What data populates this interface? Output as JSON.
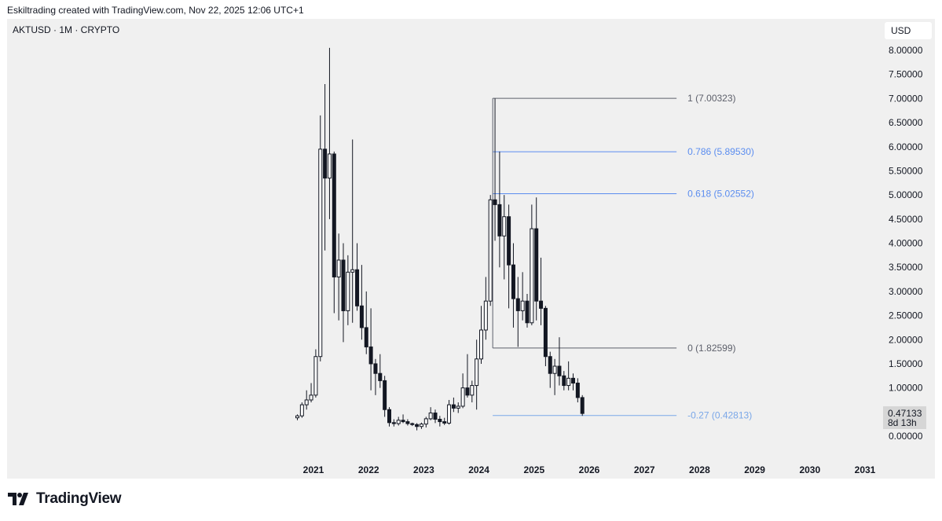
{
  "header": {
    "attribution": "Eskiltrading created with TradingView.com, Nov 22, 2025 12:06 UTC+1"
  },
  "symbol_label": "AKTUSD · 1M · CRYPTO",
  "currency_button": "USD",
  "price_badge": {
    "price": "0.47133",
    "countdown": "8d 13h"
  },
  "footer": {
    "brand": "TradingView"
  },
  "colors": {
    "background": "#f0f0f0",
    "candle": "#131722",
    "fib_dark": "#5d606b",
    "fib_blue": "#5b8def",
    "fib_light_blue": "#7aa7e8"
  },
  "chart_data": {
    "type": "candlestick",
    "symbol": "AKTUSD",
    "interval": "1M",
    "exchange": "CRYPTO",
    "y_axis": {
      "ticks": [
        "8.00000",
        "7.50000",
        "7.00000",
        "6.50000",
        "6.00000",
        "5.50000",
        "5.00000",
        "4.50000",
        "4.00000",
        "3.50000",
        "3.00000",
        "2.50000",
        "2.00000",
        "1.50000",
        "1.00000",
        "0.50000",
        "0.00000"
      ],
      "range": [
        0,
        8
      ]
    },
    "x_axis": {
      "ticks": [
        "2021",
        "2022",
        "2023",
        "2024",
        "2025",
        "2026",
        "2027",
        "2028",
        "2029",
        "2030",
        "2031"
      ]
    },
    "fib_levels": [
      {
        "ratio": "1",
        "label": "1 (7.00323)",
        "value": 7.00323,
        "color": "dark"
      },
      {
        "ratio": "0.786",
        "label": "0.786 (5.89530)",
        "value": 5.8953,
        "color": "blue"
      },
      {
        "ratio": "0.618",
        "label": "0.618 (5.02552)",
        "value": 5.02552,
        "color": "blue"
      },
      {
        "ratio": "0",
        "label": "0 (1.82599)",
        "value": 1.82599,
        "color": "dark"
      },
      {
        "ratio": "-0.27",
        "label": "-0.27 (0.42813)",
        "value": 0.42813,
        "color": "light_blue"
      }
    ],
    "fib_start_date": "2024-04",
    "fib_end_date": "2027-08",
    "candles": [
      {
        "d": "2020-09",
        "o": 0.38,
        "h": 0.45,
        "l": 0.33,
        "c": 0.42
      },
      {
        "d": "2020-10",
        "o": 0.42,
        "h": 0.7,
        "l": 0.38,
        "c": 0.65
      },
      {
        "d": "2020-11",
        "o": 0.65,
        "h": 0.95,
        "l": 0.55,
        "c": 0.75
      },
      {
        "d": "2020-12",
        "o": 0.75,
        "h": 1.1,
        "l": 0.7,
        "c": 0.85
      },
      {
        "d": "2021-01",
        "o": 0.85,
        "h": 1.8,
        "l": 0.8,
        "c": 1.65
      },
      {
        "d": "2021-02",
        "o": 1.65,
        "h": 6.65,
        "l": 1.55,
        "c": 5.95
      },
      {
        "d": "2021-03",
        "o": 5.95,
        "h": 7.3,
        "l": 3.85,
        "c": 5.35
      },
      {
        "d": "2021-04",
        "o": 5.35,
        "h": 8.05,
        "l": 4.5,
        "c": 5.85
      },
      {
        "d": "2021-05",
        "o": 5.85,
        "h": 5.9,
        "l": 2.55,
        "c": 3.3
      },
      {
        "d": "2021-06",
        "o": 3.3,
        "h": 4.2,
        "l": 2.4,
        "c": 3.65
      },
      {
        "d": "2021-07",
        "o": 3.65,
        "h": 4.0,
        "l": 1.95,
        "c": 2.6
      },
      {
        "d": "2021-08",
        "o": 2.6,
        "h": 3.75,
        "l": 2.3,
        "c": 3.4
      },
      {
        "d": "2021-09",
        "o": 3.4,
        "h": 6.15,
        "l": 2.35,
        "c": 3.45
      },
      {
        "d": "2021-10",
        "o": 3.45,
        "h": 4.0,
        "l": 2.6,
        "c": 2.7
      },
      {
        "d": "2021-11",
        "o": 2.7,
        "h": 3.55,
        "l": 2.0,
        "c": 2.25
      },
      {
        "d": "2021-12",
        "o": 2.25,
        "h": 3.0,
        "l": 1.7,
        "c": 1.85
      },
      {
        "d": "2022-01",
        "o": 1.85,
        "h": 2.65,
        "l": 0.95,
        "c": 1.5
      },
      {
        "d": "2022-02",
        "o": 1.5,
        "h": 1.6,
        "l": 0.85,
        "c": 1.3
      },
      {
        "d": "2022-03",
        "o": 1.3,
        "h": 1.7,
        "l": 1.0,
        "c": 1.15
      },
      {
        "d": "2022-04",
        "o": 1.15,
        "h": 1.25,
        "l": 0.4,
        "c": 0.55
      },
      {
        "d": "2022-05",
        "o": 0.55,
        "h": 0.6,
        "l": 0.2,
        "c": 0.28
      },
      {
        "d": "2022-06",
        "o": 0.28,
        "h": 0.35,
        "l": 0.2,
        "c": 0.26
      },
      {
        "d": "2022-07",
        "o": 0.26,
        "h": 0.4,
        "l": 0.22,
        "c": 0.33
      },
      {
        "d": "2022-08",
        "o": 0.33,
        "h": 0.45,
        "l": 0.27,
        "c": 0.3
      },
      {
        "d": "2022-09",
        "o": 0.3,
        "h": 0.35,
        "l": 0.22,
        "c": 0.26
      },
      {
        "d": "2022-10",
        "o": 0.26,
        "h": 0.28,
        "l": 0.21,
        "c": 0.24
      },
      {
        "d": "2022-11",
        "o": 0.24,
        "h": 0.27,
        "l": 0.12,
        "c": 0.2
      },
      {
        "d": "2022-12",
        "o": 0.2,
        "h": 0.28,
        "l": 0.15,
        "c": 0.25
      },
      {
        "d": "2023-01",
        "o": 0.25,
        "h": 0.4,
        "l": 0.18,
        "c": 0.36
      },
      {
        "d": "2023-02",
        "o": 0.36,
        "h": 0.6,
        "l": 0.33,
        "c": 0.48
      },
      {
        "d": "2023-03",
        "o": 0.48,
        "h": 0.55,
        "l": 0.27,
        "c": 0.35
      },
      {
        "d": "2023-04",
        "o": 0.35,
        "h": 0.42,
        "l": 0.2,
        "c": 0.3
      },
      {
        "d": "2023-05",
        "o": 0.3,
        "h": 0.38,
        "l": 0.23,
        "c": 0.27
      },
      {
        "d": "2023-06",
        "o": 0.27,
        "h": 0.75,
        "l": 0.24,
        "c": 0.65
      },
      {
        "d": "2023-07",
        "o": 0.65,
        "h": 0.8,
        "l": 0.5,
        "c": 0.58
      },
      {
        "d": "2023-08",
        "o": 0.58,
        "h": 0.7,
        "l": 0.48,
        "c": 0.62
      },
      {
        "d": "2023-09",
        "o": 0.62,
        "h": 1.3,
        "l": 0.58,
        "c": 1.0
      },
      {
        "d": "2023-10",
        "o": 1.0,
        "h": 1.7,
        "l": 0.8,
        "c": 0.85
      },
      {
        "d": "2023-11",
        "o": 0.85,
        "h": 1.15,
        "l": 0.7,
        "c": 1.05
      },
      {
        "d": "2023-12",
        "o": 1.05,
        "h": 2.0,
        "l": 0.55,
        "c": 1.6
      },
      {
        "d": "2024-01",
        "o": 1.6,
        "h": 2.7,
        "l": 1.5,
        "c": 2.2
      },
      {
        "d": "2024-02",
        "o": 2.2,
        "h": 3.3,
        "l": 2.0,
        "c": 2.8
      },
      {
        "d": "2024-03",
        "o": 2.8,
        "h": 5.0,
        "l": 2.7,
        "c": 4.9
      },
      {
        "d": "2024-04",
        "o": 4.9,
        "h": 7.0,
        "l": 4.05,
        "c": 4.8
      },
      {
        "d": "2024-05",
        "o": 4.8,
        "h": 5.9,
        "l": 3.5,
        "c": 4.15
      },
      {
        "d": "2024-06",
        "o": 4.15,
        "h": 5.0,
        "l": 3.25,
        "c": 4.55
      },
      {
        "d": "2024-07",
        "o": 4.55,
        "h": 4.8,
        "l": 2.65,
        "c": 3.55
      },
      {
        "d": "2024-08",
        "o": 3.55,
        "h": 4.0,
        "l": 2.25,
        "c": 2.85
      },
      {
        "d": "2024-09",
        "o": 2.85,
        "h": 3.3,
        "l": 1.85,
        "c": 2.6
      },
      {
        "d": "2024-10",
        "o": 2.6,
        "h": 3.4,
        "l": 2.4,
        "c": 2.8
      },
      {
        "d": "2024-11",
        "o": 2.8,
        "h": 2.95,
        "l": 2.25,
        "c": 2.35
      },
      {
        "d": "2024-12",
        "o": 2.35,
        "h": 4.8,
        "l": 2.3,
        "c": 4.3
      },
      {
        "d": "2025-01",
        "o": 4.3,
        "h": 4.95,
        "l": 2.4,
        "c": 2.8
      },
      {
        "d": "2025-02",
        "o": 2.8,
        "h": 3.7,
        "l": 2.3,
        "c": 2.65
      },
      {
        "d": "2025-03",
        "o": 2.65,
        "h": 2.7,
        "l": 1.45,
        "c": 1.65
      },
      {
        "d": "2025-04",
        "o": 1.65,
        "h": 1.75,
        "l": 1.0,
        "c": 1.3
      },
      {
        "d": "2025-05",
        "o": 1.3,
        "h": 1.6,
        "l": 0.85,
        "c": 1.45
      },
      {
        "d": "2025-06",
        "o": 1.45,
        "h": 2.05,
        "l": 1.05,
        "c": 1.25
      },
      {
        "d": "2025-07",
        "o": 1.25,
        "h": 1.35,
        "l": 0.95,
        "c": 1.05
      },
      {
        "d": "2025-08",
        "o": 1.05,
        "h": 1.55,
        "l": 0.95,
        "c": 1.2
      },
      {
        "d": "2025-09",
        "o": 1.2,
        "h": 1.3,
        "l": 0.95,
        "c": 1.1
      },
      {
        "d": "2025-10",
        "o": 1.1,
        "h": 1.2,
        "l": 0.7,
        "c": 0.8
      },
      {
        "d": "2025-11",
        "o": 0.8,
        "h": 0.85,
        "l": 0.42,
        "c": 0.47
      }
    ]
  }
}
